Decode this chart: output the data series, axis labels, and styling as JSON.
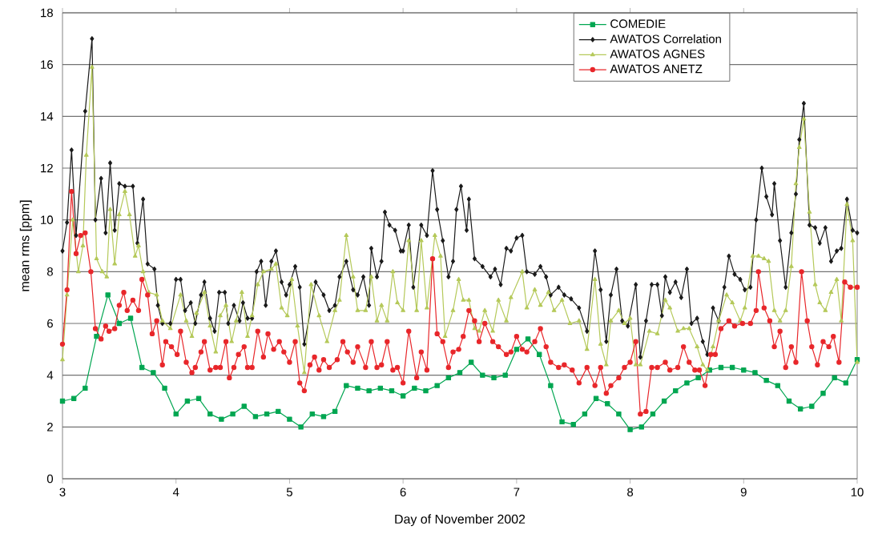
{
  "chart_data": {
    "type": "line",
    "xlabel": "Day of November 2002",
    "ylabel": "mean rms [ppm]",
    "xlim": [
      3,
      10
    ],
    "ylim": [
      0,
      18
    ],
    "xticks": [
      3,
      4,
      5,
      6,
      7,
      8,
      9,
      10
    ],
    "yticks": [
      0,
      2,
      4,
      6,
      8,
      10,
      12,
      14,
      16,
      18
    ],
    "grid": "y",
    "legend": "top right",
    "series": [
      {
        "name": "COMEDIE",
        "color": "#00a651",
        "marker": "square",
        "x": [
          3.0,
          3.1,
          3.2,
          3.3,
          3.4,
          3.5,
          3.6,
          3.7,
          3.8,
          3.9,
          4.0,
          4.1,
          4.2,
          4.3,
          4.4,
          4.5,
          4.6,
          4.7,
          4.8,
          4.9,
          5.0,
          5.1,
          5.2,
          5.3,
          5.4,
          5.5,
          5.6,
          5.7,
          5.8,
          5.9,
          6.0,
          6.1,
          6.2,
          6.3,
          6.4,
          6.5,
          6.6,
          6.7,
          6.8,
          6.9,
          7.0,
          7.1,
          7.2,
          7.3,
          7.4,
          7.5,
          7.6,
          7.7,
          7.8,
          7.9,
          8.0,
          8.1,
          8.2,
          8.3,
          8.4,
          8.5,
          8.6,
          8.7,
          8.8,
          8.9,
          9.0,
          9.1,
          9.2,
          9.3,
          9.4,
          9.5,
          9.6,
          9.7,
          9.8,
          9.9,
          10.0
        ],
        "values": [
          3.0,
          3.1,
          3.5,
          5.5,
          7.1,
          6.0,
          6.2,
          4.3,
          4.1,
          3.5,
          2.5,
          3.0,
          3.1,
          2.5,
          2.3,
          2.5,
          2.8,
          2.4,
          2.5,
          2.6,
          2.3,
          2.0,
          2.5,
          2.4,
          2.6,
          3.6,
          3.5,
          3.4,
          3.5,
          3.4,
          3.2,
          3.5,
          3.4,
          3.6,
          3.9,
          4.1,
          4.5,
          4.0,
          3.9,
          4.0,
          5.0,
          5.4,
          4.8,
          3.6,
          2.2,
          2.1,
          2.5,
          3.1,
          2.9,
          2.5,
          1.9,
          2.0,
          2.5,
          3.0,
          3.4,
          3.7,
          3.9,
          4.2,
          4.3,
          4.3,
          4.2,
          4.1,
          3.8,
          3.6,
          3.0,
          2.7,
          2.8,
          3.3,
          3.9,
          3.7,
          4.6
        ]
      },
      {
        "name": "AWATOS Correlation",
        "color": "#1a1a1a",
        "marker": "diamond",
        "x": [
          3.0,
          3.04,
          3.08,
          3.12,
          3.2,
          3.26,
          3.29,
          3.34,
          3.38,
          3.42,
          3.46,
          3.5,
          3.55,
          3.62,
          3.66,
          3.71,
          3.75,
          3.81,
          3.84,
          3.88,
          3.95,
          4.0,
          4.04,
          4.08,
          4.13,
          4.17,
          4.22,
          4.25,
          4.3,
          4.34,
          4.38,
          4.43,
          4.46,
          4.51,
          4.56,
          4.59,
          4.63,
          4.67,
          4.71,
          4.75,
          4.79,
          4.84,
          4.88,
          4.93,
          4.97,
          5.0,
          5.05,
          5.09,
          5.13,
          5.23,
          5.3,
          5.35,
          5.4,
          5.44,
          5.5,
          5.56,
          5.6,
          5.65,
          5.7,
          5.72,
          5.77,
          5.81,
          5.84,
          5.88,
          5.93,
          5.98,
          6.0,
          6.05,
          6.09,
          6.16,
          6.21,
          6.26,
          6.3,
          6.35,
          6.4,
          6.44,
          6.47,
          6.51,
          6.56,
          6.58,
          6.63,
          6.7,
          6.77,
          6.81,
          6.86,
          6.91,
          6.95,
          7.0,
          7.05,
          7.09,
          7.16,
          7.21,
          7.26,
          7.3,
          7.37,
          7.42,
          7.48,
          7.55,
          7.62,
          7.69,
          7.74,
          7.79,
          7.83,
          7.88,
          7.93,
          7.98,
          8.05,
          8.09,
          8.14,
          8.19,
          8.24,
          8.28,
          8.31,
          8.35,
          8.4,
          8.45,
          8.5,
          8.54,
          8.59,
          8.64,
          8.68,
          8.73,
          8.78,
          8.83,
          8.87,
          8.92,
          8.97,
          9.01,
          9.06,
          9.11,
          9.16,
          9.2,
          9.25,
          9.27,
          9.32,
          9.37,
          9.42,
          9.46,
          9.49,
          9.53,
          9.58,
          9.63,
          9.67,
          9.72,
          9.77,
          9.82,
          9.86,
          9.91,
          9.96,
          10.0
        ],
        "values": [
          8.8,
          9.9,
          12.7,
          9.4,
          14.2,
          17.0,
          10.0,
          11.6,
          9.5,
          12.2,
          9.6,
          11.4,
          11.3,
          11.3,
          9.1,
          10.8,
          8.3,
          8.1,
          6.7,
          6.0,
          6.0,
          7.7,
          7.7,
          6.5,
          6.8,
          6.0,
          7.1,
          7.6,
          6.2,
          5.7,
          7.2,
          7.2,
          6.0,
          6.7,
          6.1,
          6.8,
          6.2,
          6.2,
          8.0,
          8.4,
          6.7,
          8.4,
          8.8,
          7.6,
          7.1,
          7.5,
          8.2,
          7.4,
          5.2,
          7.6,
          7.1,
          6.5,
          6.7,
          7.8,
          8.4,
          7.3,
          7.1,
          7.8,
          6.7,
          8.9,
          7.8,
          8.4,
          10.3,
          9.8,
          9.6,
          8.8,
          8.8,
          9.8,
          7.4,
          9.8,
          9.4,
          11.9,
          10.4,
          9.2,
          7.8,
          8.4,
          10.4,
          11.3,
          9.6,
          10.8,
          8.5,
          8.2,
          7.8,
          8.1,
          7.5,
          8.9,
          8.8,
          9.3,
          9.4,
          8.0,
          7.9,
          8.2,
          7.8,
          7.1,
          7.4,
          7.1,
          6.95,
          6.6,
          5.7,
          8.8,
          7.3,
          5.3,
          7.1,
          8.1,
          6.1,
          5.9,
          7.5,
          4.7,
          6.1,
          7.5,
          7.5,
          6.3,
          7.8,
          7.2,
          7.6,
          7.0,
          8.1,
          6.0,
          6.2,
          5.3,
          4.8,
          6.6,
          6.1,
          7.4,
          8.6,
          7.9,
          7.7,
          7.3,
          7.4,
          10.0,
          12.0,
          10.9,
          10.2,
          11.4,
          9.2,
          7.4,
          9.5,
          11.0,
          13.1,
          14.5,
          9.8,
          9.7,
          9.1,
          9.7,
          8.4,
          8.8,
          8.9,
          10.8,
          9.6,
          9.5
        ]
      },
      {
        "name": "AWATOS AGNES",
        "color": "#b5c95a",
        "marker": "triangle",
        "x": [
          3.0,
          3.04,
          3.09,
          3.14,
          3.18,
          3.21,
          3.26,
          3.3,
          3.35,
          3.39,
          3.42,
          3.46,
          3.5,
          3.55,
          3.59,
          3.64,
          3.67,
          3.71,
          3.76,
          3.83,
          3.88,
          3.95,
          4.04,
          4.09,
          4.14,
          4.18,
          4.25,
          4.3,
          4.35,
          4.39,
          4.44,
          4.49,
          4.53,
          4.58,
          4.63,
          4.67,
          4.72,
          4.77,
          4.84,
          4.88,
          4.93,
          4.98,
          5.02,
          5.07,
          5.13,
          5.19,
          5.26,
          5.33,
          5.4,
          5.44,
          5.5,
          5.56,
          5.6,
          5.67,
          5.72,
          5.77,
          5.81,
          5.86,
          5.91,
          5.95,
          6.0,
          6.05,
          6.12,
          6.16,
          6.21,
          6.28,
          6.33,
          6.37,
          6.44,
          6.49,
          6.53,
          6.58,
          6.63,
          6.67,
          6.72,
          6.79,
          6.84,
          6.91,
          6.95,
          7.05,
          7.09,
          7.16,
          7.21,
          7.28,
          7.33,
          7.4,
          7.47,
          7.55,
          7.62,
          7.69,
          7.74,
          7.79,
          7.83,
          7.9,
          7.95,
          8.0,
          8.05,
          8.09,
          8.17,
          8.24,
          8.31,
          8.35,
          8.42,
          8.47,
          8.52,
          8.59,
          8.64,
          8.68,
          8.73,
          8.78,
          8.85,
          8.9,
          8.97,
          9.01,
          9.08,
          9.13,
          9.18,
          9.22,
          9.27,
          9.32,
          9.37,
          9.42,
          9.46,
          9.49,
          9.53,
          9.58,
          9.63,
          9.67,
          9.72,
          9.77,
          9.82,
          9.86,
          9.91,
          9.96,
          10.0
        ],
        "values": [
          4.6,
          7.1,
          10.0,
          8.0,
          9.0,
          12.5,
          15.9,
          8.5,
          8.0,
          7.8,
          10.4,
          8.3,
          10.2,
          11.1,
          10.2,
          8.6,
          9.0,
          8.0,
          7.2,
          7.1,
          6.1,
          5.8,
          7.1,
          6.1,
          5.5,
          6.4,
          7.2,
          5.9,
          4.9,
          6.3,
          6.7,
          5.3,
          6.1,
          7.2,
          5.5,
          6.3,
          7.5,
          8.0,
          8.1,
          8.3,
          6.6,
          6.3,
          7.7,
          5.9,
          4.1,
          7.5,
          6.3,
          5.3,
          6.5,
          6.9,
          9.4,
          7.8,
          6.5,
          6.5,
          7.8,
          6.1,
          6.7,
          6.1,
          8.0,
          6.8,
          6.5,
          9.2,
          6.5,
          9.2,
          6.6,
          9.4,
          8.6,
          5.5,
          6.5,
          7.7,
          6.9,
          6.9,
          5.8,
          5.7,
          6.5,
          5.7,
          6.9,
          6.1,
          7.0,
          8.0,
          6.6,
          7.3,
          6.7,
          7.2,
          6.5,
          6.9,
          6.0,
          6.1,
          5.0,
          7.7,
          5.2,
          4.4,
          6.1,
          6.5,
          6.0,
          6.2,
          4.4,
          4.4,
          5.7,
          5.6,
          6.9,
          6.6,
          5.7,
          5.8,
          5.8,
          5.1,
          4.4,
          4.2,
          5.1,
          6.1,
          7.1,
          6.8,
          6.1,
          6.6,
          8.6,
          8.6,
          8.5,
          8.4,
          6.5,
          6.1,
          6.5,
          8.2,
          11.4,
          12.8,
          13.9,
          10.3,
          7.5,
          6.8,
          6.5,
          7.2,
          7.7,
          6.1,
          10.6,
          9.2,
          4.5
        ]
      },
      {
        "name": "AWATOS ANETZ",
        "color": "#e8262a",
        "marker": "circle",
        "x": [
          3.0,
          3.04,
          3.08,
          3.12,
          3.16,
          3.2,
          3.25,
          3.29,
          3.34,
          3.38,
          3.41,
          3.46,
          3.5,
          3.54,
          3.57,
          3.62,
          3.67,
          3.7,
          3.75,
          3.79,
          3.83,
          3.88,
          3.91,
          3.96,
          4.01,
          4.04,
          4.09,
          4.14,
          4.17,
          4.22,
          4.25,
          4.3,
          4.35,
          4.39,
          4.44,
          4.47,
          4.51,
          4.55,
          4.6,
          4.63,
          4.67,
          4.72,
          4.77,
          4.81,
          4.86,
          4.91,
          4.95,
          5.0,
          5.05,
          5.09,
          5.13,
          5.18,
          5.22,
          5.26,
          5.3,
          5.35,
          5.42,
          5.47,
          5.51,
          5.56,
          5.6,
          5.67,
          5.72,
          5.77,
          5.81,
          5.86,
          5.91,
          5.95,
          6.0,
          6.05,
          6.12,
          6.16,
          6.21,
          6.26,
          6.3,
          6.35,
          6.4,
          6.44,
          6.49,
          6.53,
          6.58,
          6.63,
          6.67,
          6.72,
          6.79,
          6.84,
          6.91,
          6.95,
          7.0,
          7.05,
          7.09,
          7.16,
          7.21,
          7.26,
          7.3,
          7.37,
          7.42,
          7.49,
          7.55,
          7.62,
          7.69,
          7.74,
          7.79,
          7.83,
          7.9,
          7.95,
          8.0,
          8.05,
          8.09,
          8.14,
          8.19,
          8.24,
          8.31,
          8.35,
          8.42,
          8.47,
          8.52,
          8.57,
          8.61,
          8.66,
          8.71,
          8.75,
          8.8,
          8.87,
          8.92,
          8.99,
          9.06,
          9.11,
          9.13,
          9.18,
          9.23,
          9.27,
          9.32,
          9.37,
          9.42,
          9.46,
          9.51,
          9.56,
          9.6,
          9.65,
          9.7,
          9.75,
          9.79,
          9.84,
          9.89,
          9.94,
          10.0
        ],
        "values": [
          5.2,
          7.3,
          11.1,
          8.7,
          9.4,
          9.5,
          8.0,
          5.8,
          5.4,
          5.9,
          5.7,
          5.8,
          6.7,
          7.2,
          6.5,
          6.9,
          6.5,
          7.7,
          7.1,
          5.6,
          6.1,
          4.4,
          5.3,
          5.1,
          4.8,
          5.7,
          4.5,
          4.1,
          4.3,
          4.9,
          5.3,
          4.2,
          4.3,
          4.3,
          5.3,
          3.9,
          4.3,
          4.8,
          5.1,
          4.3,
          4.3,
          5.7,
          4.7,
          5.6,
          5.0,
          5.3,
          4.9,
          4.5,
          5.3,
          3.7,
          3.4,
          4.4,
          4.7,
          4.2,
          4.6,
          4.3,
          4.6,
          5.3,
          4.9,
          4.5,
          5.1,
          4.3,
          5.3,
          4.3,
          4.4,
          5.3,
          4.2,
          4.3,
          3.7,
          5.7,
          3.9,
          4.9,
          4.2,
          8.5,
          5.6,
          5.3,
          4.3,
          4.9,
          5.0,
          5.5,
          6.5,
          6.1,
          5.3,
          6.0,
          5.3,
          5.1,
          4.8,
          4.9,
          5.5,
          5.0,
          4.9,
          5.3,
          5.8,
          5.1,
          4.5,
          4.3,
          4.4,
          4.2,
          3.7,
          4.3,
          3.6,
          4.3,
          3.3,
          3.6,
          3.9,
          4.3,
          4.5,
          5.3,
          2.5,
          2.6,
          4.3,
          4.3,
          4.5,
          4.2,
          4.3,
          5.1,
          4.5,
          4.2,
          4.2,
          3.6,
          4.8,
          4.8,
          5.8,
          6.1,
          5.9,
          6.0,
          6.0,
          6.5,
          8.0,
          6.6,
          6.1,
          5.1,
          5.7,
          4.3,
          5.1,
          4.5,
          8.0,
          6.1,
          5.1,
          4.4,
          5.3,
          5.1,
          5.5,
          4.5,
          7.6,
          7.4,
          7.4
        ]
      }
    ]
  }
}
